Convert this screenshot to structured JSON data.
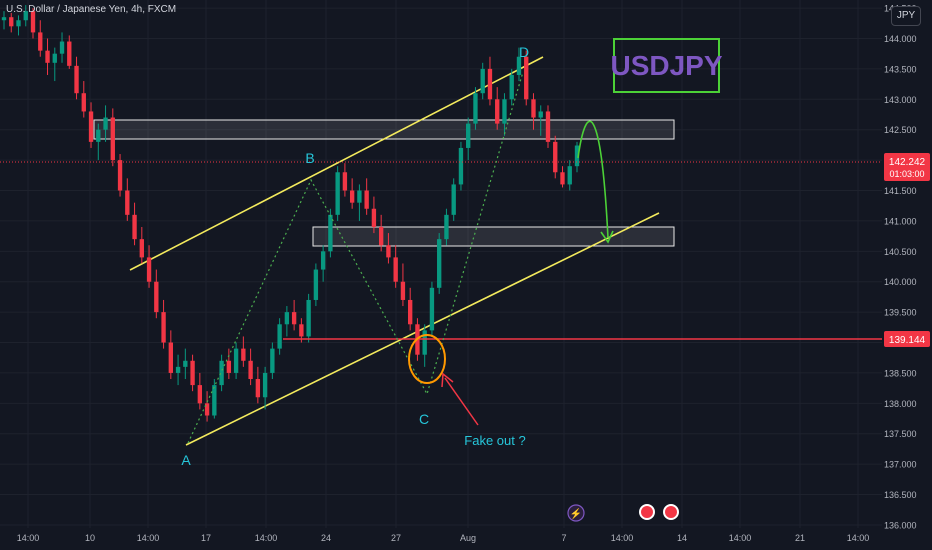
{
  "header": {
    "symbol_title": "U.S. Dollar / Japanese Yen, 4h, FXCM",
    "currency_button": "JPY"
  },
  "chart_data": {
    "type": "candlestick",
    "title": "USDJPY",
    "ylim": [
      135.95,
      144.6
    ],
    "y_ticks": [
      "144.500",
      "144.000",
      "143.500",
      "143.000",
      "142.500",
      "142.000",
      "141.500",
      "141.000",
      "140.500",
      "140.000",
      "139.500",
      "139.000",
      "138.500",
      "138.000",
      "137.500",
      "137.000",
      "136.500",
      "136.000"
    ],
    "x_ticks": [
      "14:00",
      "10",
      "14:00",
      "17",
      "14:00",
      "24",
      "27",
      "Aug",
      "7",
      "14:00",
      "14",
      "14:00",
      "21",
      "14:00"
    ],
    "last_price": "142.242",
    "countdown": "01:03:00",
    "support_level": "139.144",
    "support_value": 139.144,
    "pattern_labels": [
      "A",
      "B",
      "C",
      "D"
    ],
    "annotation": "Fake out ?",
    "candles": [
      [
        144.3,
        144.45,
        144.15,
        144.35
      ],
      [
        144.35,
        144.42,
        144.1,
        144.2
      ],
      [
        144.2,
        144.38,
        144.05,
        144.3
      ],
      [
        144.3,
        144.55,
        144.2,
        144.45
      ],
      [
        144.45,
        144.5,
        144.0,
        144.1
      ],
      [
        144.1,
        144.3,
        143.7,
        143.8
      ],
      [
        143.8,
        144.0,
        143.4,
        143.6
      ],
      [
        143.6,
        143.85,
        143.3,
        143.75
      ],
      [
        143.75,
        144.1,
        143.6,
        143.95
      ],
      [
        143.95,
        144.05,
        143.5,
        143.55
      ],
      [
        143.55,
        143.7,
        143.0,
        143.1
      ],
      [
        143.1,
        143.3,
        142.7,
        142.8
      ],
      [
        142.8,
        142.95,
        142.2,
        142.3
      ],
      [
        142.3,
        142.6,
        142.0,
        142.5
      ],
      [
        142.5,
        142.9,
        142.3,
        142.7
      ],
      [
        142.7,
        142.85,
        141.9,
        142.0
      ],
      [
        142.0,
        142.1,
        141.4,
        141.5
      ],
      [
        141.5,
        141.7,
        141.0,
        141.1
      ],
      [
        141.1,
        141.3,
        140.6,
        140.7
      ],
      [
        140.7,
        140.9,
        140.3,
        140.4
      ],
      [
        140.4,
        140.6,
        139.9,
        140.0
      ],
      [
        140.0,
        140.2,
        139.4,
        139.5
      ],
      [
        139.5,
        139.7,
        138.9,
        139.0
      ],
      [
        139.0,
        139.2,
        138.4,
        138.5
      ],
      [
        138.5,
        138.8,
        138.3,
        138.6
      ],
      [
        138.6,
        138.9,
        138.4,
        138.7
      ],
      [
        138.7,
        138.8,
        138.2,
        138.3
      ],
      [
        138.3,
        138.5,
        137.9,
        138.0
      ],
      [
        138.0,
        138.2,
        137.7,
        137.8
      ],
      [
        137.8,
        138.4,
        137.75,
        138.3
      ],
      [
        138.3,
        138.8,
        138.2,
        138.7
      ],
      [
        138.7,
        138.9,
        138.4,
        138.5
      ],
      [
        138.5,
        139.0,
        138.4,
        138.9
      ],
      [
        138.9,
        139.1,
        138.6,
        138.7
      ],
      [
        138.7,
        138.9,
        138.3,
        138.4
      ],
      [
        138.4,
        138.6,
        138.0,
        138.1
      ],
      [
        138.1,
        138.6,
        137.9,
        138.5
      ],
      [
        138.5,
        139.0,
        138.4,
        138.9
      ],
      [
        138.9,
        139.4,
        138.8,
        139.3
      ],
      [
        139.3,
        139.6,
        139.1,
        139.5
      ],
      [
        139.5,
        139.7,
        139.2,
        139.3
      ],
      [
        139.3,
        139.4,
        139.0,
        139.1
      ],
      [
        139.1,
        139.8,
        139.0,
        139.7
      ],
      [
        139.7,
        140.3,
        139.6,
        140.2
      ],
      [
        140.2,
        140.6,
        140.0,
        140.5
      ],
      [
        140.5,
        141.2,
        140.4,
        141.1
      ],
      [
        141.1,
        141.9,
        141.0,
        141.8
      ],
      [
        141.8,
        141.95,
        141.4,
        141.5
      ],
      [
        141.5,
        141.7,
        141.2,
        141.3
      ],
      [
        141.3,
        141.6,
        141.0,
        141.5
      ],
      [
        141.5,
        141.7,
        141.1,
        141.2
      ],
      [
        141.2,
        141.4,
        140.8,
        140.9
      ],
      [
        140.9,
        141.1,
        140.5,
        140.6
      ],
      [
        140.6,
        140.8,
        140.3,
        140.4
      ],
      [
        140.4,
        140.6,
        139.9,
        140.0
      ],
      [
        140.0,
        140.3,
        139.6,
        139.7
      ],
      [
        139.7,
        139.9,
        139.2,
        139.3
      ],
      [
        139.3,
        139.4,
        138.7,
        138.8
      ],
      [
        138.8,
        139.3,
        138.6,
        139.2
      ],
      [
        139.2,
        140.0,
        139.1,
        139.9
      ],
      [
        139.9,
        140.8,
        139.8,
        140.7
      ],
      [
        140.7,
        141.2,
        140.6,
        141.1
      ],
      [
        141.1,
        141.7,
        141.0,
        141.6
      ],
      [
        141.6,
        142.3,
        141.5,
        142.2
      ],
      [
        142.2,
        142.7,
        142.0,
        142.6
      ],
      [
        142.6,
        143.2,
        142.5,
        143.1
      ],
      [
        143.1,
        143.6,
        143.0,
        143.5
      ],
      [
        143.5,
        143.7,
        142.9,
        143.0
      ],
      [
        143.0,
        143.2,
        142.5,
        142.6
      ],
      [
        142.6,
        143.1,
        142.4,
        143.0
      ],
      [
        143.0,
        143.5,
        142.9,
        143.4
      ],
      [
        143.4,
        143.85,
        143.3,
        143.7
      ],
      [
        143.7,
        143.8,
        142.9,
        143.0
      ],
      [
        143.0,
        143.1,
        142.5,
        142.7
      ],
      [
        142.7,
        142.9,
        142.4,
        142.8
      ],
      [
        142.8,
        142.9,
        142.2,
        142.3
      ],
      [
        142.3,
        142.4,
        141.7,
        141.8
      ],
      [
        141.8,
        141.9,
        141.55,
        141.6
      ],
      [
        141.6,
        142.0,
        141.5,
        141.9
      ],
      [
        141.9,
        142.3,
        141.8,
        142.24
      ]
    ]
  }
}
